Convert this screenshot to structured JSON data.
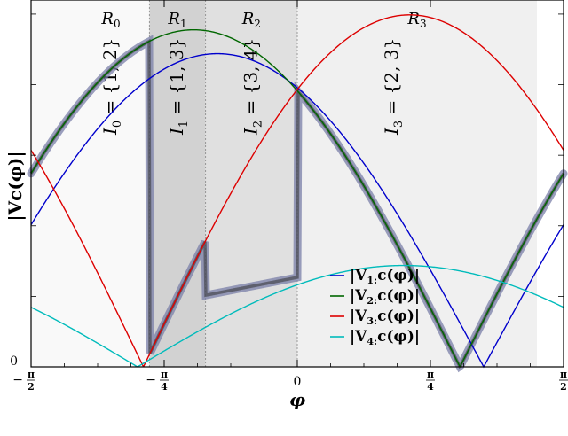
{
  "chart_data": {
    "type": "line",
    "xlabel": "φ",
    "ylabel": "|Vc(φ)|",
    "xlim": [
      -1.5708,
      1.5708
    ],
    "ylim": [
      0,
      1.23
    ],
    "x_ticks": [
      {
        "value": -1.5708,
        "label": "−π/2"
      },
      {
        "value": -0.7854,
        "label": "−π/4"
      },
      {
        "value": 0,
        "label": "0"
      },
      {
        "value": 0.7854,
        "label": "π/4"
      },
      {
        "value": 1.5708,
        "label": "π/2"
      }
    ],
    "y_ticks": [
      {
        "value": 0,
        "label": "0"
      }
    ],
    "regions": [
      {
        "name": "R0",
        "label_main": "R",
        "label_sub": "0",
        "from": -1.5708,
        "to": -0.8727,
        "shade": "#f9f9f9",
        "index_label": "I0 = {1,2}",
        "index_main": "I",
        "index_sub": "0",
        "index_set": " = {1, 2}"
      },
      {
        "name": "R1",
        "label_main": "R",
        "label_sub": "1",
        "from": -0.8727,
        "to": -0.5411,
        "shade": "#d2d2d2",
        "index_label": "I1 = {1,3}",
        "index_main": "I",
        "index_sub": "1",
        "index_set": " = {1, 3}"
      },
      {
        "name": "R2",
        "label_main": "R",
        "label_sub": "2",
        "from": -0.5411,
        "to": 0.0,
        "shade": "#e0e0e0",
        "index_label": "I2 = {3,4}",
        "index_main": "I",
        "index_sub": "2",
        "index_set": " = {3, 4}"
      },
      {
        "name": "R3",
        "label_main": "R",
        "label_sub": "3",
        "from": 0.0,
        "to": 1.4137,
        "shade": "#f0f0f0",
        "index_label": "I3 = {2,3}",
        "index_main": "I",
        "index_sub": "3",
        "index_set": " = {2, 3}"
      }
    ],
    "series": [
      {
        "name": "|V1:c(φ)|",
        "legend_main": "|V",
        "legend_sub": "1:",
        "legend_rest": "c(φ)|",
        "color": "#0000cc",
        "amplitude": 1.05,
        "phase": -0.471
      },
      {
        "name": "|V2:c(φ)|",
        "legend_main": "|V",
        "legend_sub": "2:",
        "legend_rest": "c(φ)|",
        "color": "#006600",
        "amplitude": 1.13,
        "phase": -0.611
      },
      {
        "name": "|V3:c(φ)|",
        "legend_main": "|V",
        "legend_sub": "3:",
        "legend_rest": "c(φ)|",
        "color": "#dd0000",
        "amplitude": 1.18,
        "phase": 0.663
      },
      {
        "name": "|V4:c(φ)|",
        "legend_main": "|V",
        "legend_sub": "4:",
        "legend_rest": "c(φ)|",
        "color": "#00bbbb",
        "amplitude": 0.34,
        "phase": 0.628
      }
    ],
    "envelope": {
      "color": "#333333",
      "halo": "#7a7fa8"
    },
    "grid": false,
    "legend_position": "lower-right"
  }
}
